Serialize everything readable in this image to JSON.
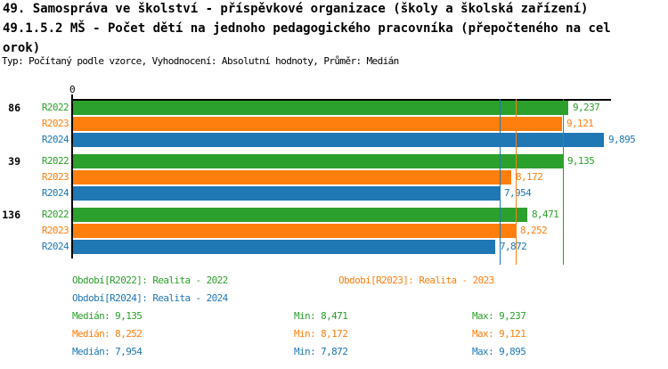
{
  "header": {
    "title_line1": "49. Samospráva ve školství - příspěvkové organizace (školy a školská zařízení)",
    "title_line2": "49.1.5.2 MŠ - Počet dětí na jednoho pedagogického pracovníka (přepočteného na cel",
    "title_line3": "orok)",
    "meta_line": "Typ: Počítaný podle vzorce, Vyhodnocení: Absolutní hodnoty, Průměr: Medián"
  },
  "colors": {
    "R2022": "#2ca02c",
    "R2023": "#ff7f0e",
    "R2024": "#1f77b4",
    "axis": "#000000",
    "background": "#ffffff"
  },
  "chart_data": {
    "type": "bar",
    "orientation": "horizontal",
    "title": "49.1.5.2 MŠ - Počet dětí na jednoho pedagogického pracovníka (přepočteného na celorok)",
    "x_axis": {
      "min": 0,
      "max": 10,
      "visible_tick_labels": [
        "0"
      ]
    },
    "grid": false,
    "series_names": [
      "R2022",
      "R2023",
      "R2024"
    ],
    "groups": [
      {
        "label": "86",
        "bars": [
          {
            "series": "R2022",
            "value": 9.237,
            "value_label": "9,237"
          },
          {
            "series": "R2023",
            "value": 9.121,
            "value_label": "9,121"
          },
          {
            "series": "R2024",
            "value": 9.895,
            "value_label": "9,895"
          }
        ]
      },
      {
        "label": "39",
        "bars": [
          {
            "series": "R2022",
            "value": 9.135,
            "value_label": "9,135"
          },
          {
            "series": "R2023",
            "value": 8.172,
            "value_label": "8,172"
          },
          {
            "series": "R2024",
            "value": 7.954,
            "value_label": "7,954"
          }
        ]
      },
      {
        "label": "136",
        "bars": [
          {
            "series": "R2022",
            "value": 8.471,
            "value_label": "8,471"
          },
          {
            "series": "R2023",
            "value": 8.252,
            "value_label": "8,252"
          },
          {
            "series": "R2024",
            "value": 7.872,
            "value_label": "7,872"
          }
        ]
      }
    ],
    "median_lines": [
      {
        "series": "R2022",
        "value": 9.135
      },
      {
        "series": "R2023",
        "value": 8.252
      },
      {
        "series": "R2024",
        "value": 7.954
      }
    ]
  },
  "legend": {
    "items": [
      {
        "series": "R2022",
        "text": "Období[R2022]: Realita - 2022"
      },
      {
        "series": "R2023",
        "text": "Období[R2023]: Realita - 2023"
      },
      {
        "series": "R2024",
        "text": "Období[R2024]: Realita - 2024"
      }
    ]
  },
  "stats": {
    "rows": [
      {
        "series": "R2022",
        "median_text": "Medián: 9,135",
        "min_text": "Min: 8,471",
        "max_text": "Max: 9,237"
      },
      {
        "series": "R2023",
        "median_text": "Medián: 8,252",
        "min_text": "Min: 8,172",
        "max_text": "Max: 9,121"
      },
      {
        "series": "R2024",
        "median_text": "Medián: 7,954",
        "min_text": "Min: 7,872",
        "max_text": "Max: 9,895"
      }
    ]
  }
}
